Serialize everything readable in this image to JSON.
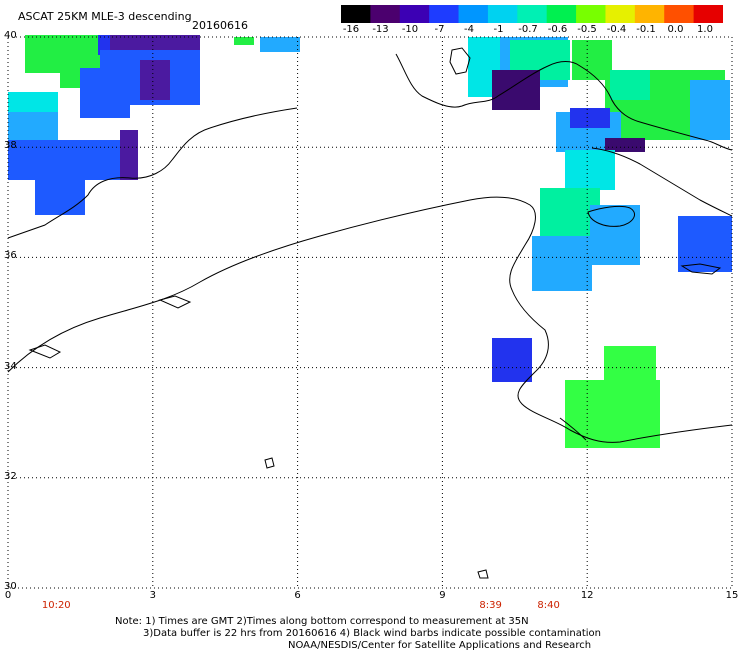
{
  "header": {
    "title": "ASCAT 25KM MLE-3 descending",
    "date": "20160616"
  },
  "colorbar": {
    "labels": [
      "-16",
      "-13",
      "-10",
      "-7",
      "-4",
      "-1",
      "-0.7",
      "-0.6",
      "-0.5",
      "-0.4",
      "-0.1",
      "0.0",
      "1.0"
    ],
    "colors": [
      "#000000",
      "#4b006e",
      "#3c00b4",
      "#1e3cff",
      "#0096ff",
      "#00d2f0",
      "#00f0b4",
      "#00f050",
      "#78ff00",
      "#e6f000",
      "#ffb400",
      "#ff5000",
      "#e60000"
    ]
  },
  "axes": {
    "lat_labels": [
      "40",
      "38",
      "36",
      "34",
      "32",
      "30"
    ],
    "lon_labels": [
      "0",
      "3",
      "6",
      "9",
      "12",
      "15"
    ]
  },
  "times": [
    {
      "label": "10:20",
      "lon": 1.0
    },
    {
      "label": "8:39",
      "lon": 10.0
    },
    {
      "label": "8:40",
      "lon": 11.2
    }
  ],
  "notes": {
    "line1": "Note: 1) Times are GMT 2)Times along bottom correspond to measurement at 35N",
    "line2": "3)Data buffer is 22 hrs from 20160616 4) Black wind barbs indicate possible contamination",
    "line3": "NOAA/NESDIS/Center for Satellite Applications and Research"
  },
  "data_colors": {
    "green": "#22ee44",
    "bright_green": "#33ff44",
    "cyan": "#00e6e6",
    "teal": "#00f0a0",
    "lightblue": "#22aaff",
    "blue": "#1e5aff",
    "deepblue": "#2233ee",
    "violet": "#4b1aa0",
    "darkviolet": "#3a0a6e"
  }
}
